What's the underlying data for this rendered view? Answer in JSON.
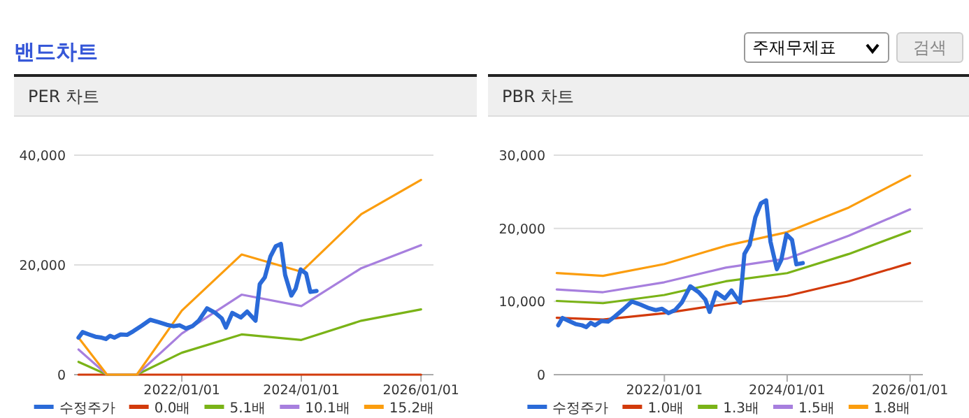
{
  "chart_data": [
    {
      "type": "other",
      "title": "밴드차트",
      "annotations": [
        "주재무제표",
        "검색"
      ]
    },
    {
      "type": "line",
      "title": "PER 차트",
      "x": [
        "2020-04-10",
        "2020-05-05",
        "2020-06-13",
        "2020-07-22",
        "2020-08-29",
        "2020-09-24",
        "2020-10-20",
        "2020-11-15",
        "2020-12-23",
        "2021-01-31",
        "2021-03-11",
        "2021-05-01",
        "2021-06-22",
        "2021-08-12",
        "2021-10-02",
        "2021-11-10",
        "2021-12-18",
        "2022-01-26",
        "2022-03-06",
        "2022-04-14",
        "2022-06-04",
        "2022-07-25",
        "2022-09-02",
        "2022-09-27",
        "2022-11-05",
        "2022-12-27",
        "2023-02-04",
        "2023-03-27",
        "2023-04-22",
        "2023-05-23",
        "2023-06-26",
        "2023-07-29",
        "2023-08-29",
        "2023-09-24",
        "2023-11-01",
        "2023-11-27",
        "2023-12-28",
        "2024-01-30",
        "2024-02-25",
        "2024-04-03"
      ],
      "series": [
        {
          "name": "수정주가",
          "color": "#2a6ad8",
          "values": [
            6750,
            7750,
            7330,
            6920,
            6750,
            6500,
            7080,
            6750,
            7330,
            7250,
            7920,
            8920,
            10000,
            9580,
            9080,
            8830,
            9000,
            8420,
            8830,
            9830,
            12080,
            11250,
            10250,
            8580,
            11250,
            10420,
            11500,
            9830,
            16500,
            17750,
            21500,
            23420,
            23830,
            18170,
            14420,
            15670,
            19170,
            18420,
            15080,
            15250
          ]
        },
        {
          "name": "0.0배",
          "color": "#d23a0b",
          "x": [
            "2020-04-10",
            "2020-10-01",
            "2021-04-01",
            "2022-01-01",
            "2023-01-01",
            "2024-01-01",
            "2025-01-01",
            "2026-01-01"
          ],
          "values": [
            0,
            0,
            0,
            0,
            0,
            0,
            0,
            0
          ]
        },
        {
          "name": "5.1배",
          "color": "#7ab317",
          "x": [
            "2020-04-10",
            "2020-10-01",
            "2021-04-01",
            "2022-01-01",
            "2023-01-01",
            "2024-01-01",
            "2025-01-01",
            "2026-01-01"
          ],
          "values": [
            2330,
            0,
            0,
            4000,
            7330,
            6330,
            9830,
            11900
          ]
        },
        {
          "name": "10.1배",
          "color": "#a77fde",
          "x": [
            "2020-04-10",
            "2020-10-01",
            "2021-04-01",
            "2022-01-01",
            "2023-01-01",
            "2024-01-01",
            "2025-01-01",
            "2026-01-01"
          ],
          "values": [
            4580,
            0,
            0,
            7500,
            14580,
            12500,
            19400,
            23600
          ]
        },
        {
          "name": "15.2배",
          "color": "#fb9d0e",
          "x": [
            "2020-04-10",
            "2020-10-01",
            "2021-04-01",
            "2022-01-01",
            "2023-01-01",
            "2024-01-01",
            "2025-01-01",
            "2026-01-01"
          ],
          "values": [
            6750,
            0,
            0,
            11670,
            21900,
            18750,
            29250,
            35500
          ]
        }
      ],
      "xlim": [
        "2020-03-14",
        "2026-03-18"
      ],
      "xticks": [
        {
          "value": "2022-01-01",
          "label": "2022/01/01"
        },
        {
          "value": "2024-01-01",
          "label": "2024/01/01"
        },
        {
          "value": "2026-01-01",
          "label": "2026/01/01"
        }
      ],
      "ylim": [
        0,
        40000
      ],
      "yticks": [
        0,
        {
          "value": 20000,
          "label": "20,000"
        },
        {
          "value": 40000,
          "label": "40,000"
        }
      ],
      "grid": "y",
      "legend": "bottom",
      "marker": "none"
    },
    {
      "type": "line",
      "title": "PBR 차트",
      "x": [
        "2020-04-10",
        "2020-05-05",
        "2020-06-13",
        "2020-07-22",
        "2020-08-29",
        "2020-09-24",
        "2020-10-20",
        "2020-11-15",
        "2020-12-23",
        "2021-01-31",
        "2021-03-11",
        "2021-05-01",
        "2021-06-22",
        "2021-08-12",
        "2021-10-02",
        "2021-11-10",
        "2021-12-18",
        "2022-01-26",
        "2022-03-06",
        "2022-04-14",
        "2022-06-04",
        "2022-07-25",
        "2022-09-02",
        "2022-09-27",
        "2022-11-05",
        "2022-12-27",
        "2023-02-04",
        "2023-03-27",
        "2023-04-22",
        "2023-05-23",
        "2023-06-26",
        "2023-07-29",
        "2023-08-29",
        "2023-09-24",
        "2023-11-01",
        "2023-11-27",
        "2023-12-28",
        "2024-01-30",
        "2024-02-25",
        "2024-04-03"
      ],
      "series": [
        {
          "name": "수정주가",
          "color": "#2a6ad8",
          "values": [
            6750,
            7750,
            7330,
            6920,
            6750,
            6500,
            7080,
            6750,
            7330,
            7250,
            7920,
            8920,
            10000,
            9580,
            9080,
            8830,
            9000,
            8420,
            8830,
            9830,
            12080,
            11250,
            10250,
            8580,
            11250,
            10420,
            11500,
            9830,
            16500,
            17750,
            21500,
            23420,
            23830,
            18170,
            14420,
            15670,
            19170,
            18420,
            15080,
            15250
          ]
        },
        {
          "name": "1.0배",
          "color": "#d23a0b",
          "x": [
            "2020-04-01",
            "2021-01-01",
            "2022-01-01",
            "2023-01-01",
            "2024-01-01",
            "2025-01-01",
            "2026-01-01"
          ],
          "values": [
            7780,
            7530,
            8400,
            9650,
            10770,
            12760,
            15250
          ]
        },
        {
          "name": "1.3배",
          "color": "#7ab317",
          "x": [
            "2020-04-01",
            "2021-01-01",
            "2022-01-01",
            "2023-01-01",
            "2024-01-01",
            "2025-01-01",
            "2026-01-01"
          ],
          "values": [
            10080,
            9770,
            10890,
            12760,
            13880,
            16490,
            19610
          ]
        },
        {
          "name": "1.5배",
          "color": "#a77fde",
          "x": [
            "2020-04-01",
            "2021-01-01",
            "2022-01-01",
            "2023-01-01",
            "2024-01-01",
            "2025-01-01",
            "2026-01-01"
          ],
          "values": [
            11640,
            11270,
            12630,
            14630,
            15870,
            18980,
            22590
          ]
        },
        {
          "name": "1.8배",
          "color": "#fb9d0e",
          "x": [
            "2020-04-01",
            "2021-01-01",
            "2022-01-01",
            "2023-01-01",
            "2024-01-01",
            "2025-01-01",
            "2026-01-01"
          ],
          "values": [
            13880,
            13510,
            15120,
            17610,
            19480,
            22840,
            27200
          ]
        }
      ],
      "xlim": [
        "2020-03-14",
        "2026-03-18"
      ],
      "xticks": [
        {
          "value": "2022-01-01",
          "label": "2022/01/01"
        },
        {
          "value": "2024-01-01",
          "label": "2024/01/01"
        },
        {
          "value": "2026-01-01",
          "label": "2026/01/01"
        }
      ],
      "ylim": [
        0,
        30000
      ],
      "yticks": [
        0,
        {
          "value": 10000,
          "label": "10,000"
        },
        {
          "value": 20000,
          "label": "20,000"
        },
        {
          "value": 30000,
          "label": "30,000"
        }
      ],
      "grid": "y",
      "legend": "bottom",
      "marker": "none"
    }
  ]
}
